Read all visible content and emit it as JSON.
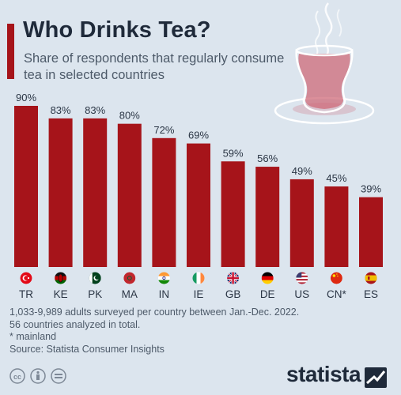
{
  "header": {
    "title": "Who Drinks Tea?",
    "subtitle": "Share of respondents that regularly consume tea in selected countries"
  },
  "colors": {
    "bar": "#a6141a",
    "text": "#1f2a3a",
    "muted": "#4d5a69",
    "background": "#dce5ee"
  },
  "chart_data": {
    "type": "bar",
    "categories": [
      "TR",
      "KE",
      "PK",
      "MA",
      "IN",
      "IE",
      "GB",
      "DE",
      "US",
      "CN*",
      "ES"
    ],
    "values": [
      90,
      83,
      83,
      80,
      72,
      69,
      59,
      56,
      49,
      45,
      39
    ],
    "value_labels": [
      "90%",
      "83%",
      "83%",
      "80%",
      "72%",
      "69%",
      "59%",
      "56%",
      "49%",
      "45%",
      "39%"
    ],
    "flags": [
      "turkey-flag",
      "kenya-flag",
      "pakistan-flag",
      "morocco-flag",
      "india-flag",
      "ireland-flag",
      "uk-flag",
      "germany-flag",
      "usa-flag",
      "china-flag",
      "spain-flag"
    ],
    "unit": "%",
    "ylim": [
      0,
      90
    ]
  },
  "notes": [
    "1,033-9,989 adults surveyed per country between Jan.-Dec. 2022.",
    "56 countries analyzed in total.",
    "* mainland",
    "Source: Statista Consumer Insights"
  ],
  "footer": {
    "brand": "statista",
    "license_icons": [
      "cc-icon",
      "by-icon",
      "nd-icon"
    ]
  }
}
